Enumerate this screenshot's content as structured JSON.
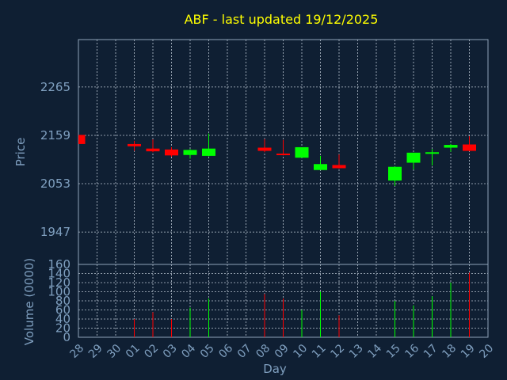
{
  "chart_data": {
    "type": "candlestick",
    "title": "ABF - last updated 19/12/2025",
    "xlabel": "Day",
    "categories": [
      "28",
      "29",
      "30",
      "01",
      "02",
      "03",
      "04",
      "05",
      "06",
      "07",
      "08",
      "09",
      "10",
      "11",
      "12",
      "13",
      "14",
      "15",
      "16",
      "17",
      "18",
      "19",
      "20"
    ],
    "price_panel": {
      "ylabel": "Price",
      "ylim": [
        1876,
        2369
      ],
      "yticks": [
        1947,
        2053,
        2159,
        2265
      ],
      "grid": true,
      "candles": [
        {
          "day": "28",
          "open": 2160,
          "high": 2160,
          "low": 2140,
          "close": 2140
        },
        {
          "day": "01",
          "open": 2140,
          "high": 2147,
          "low": 2125,
          "close": 2135
        },
        {
          "day": "02",
          "open": 2130,
          "high": 2150,
          "low": 2122,
          "close": 2124
        },
        {
          "day": "03",
          "open": 2128,
          "high": 2133,
          "low": 2112,
          "close": 2115
        },
        {
          "day": "04",
          "open": 2116,
          "high": 2129,
          "low": 2108,
          "close": 2127
        },
        {
          "day": "05",
          "open": 2114,
          "high": 2163,
          "low": 2113,
          "close": 2130
        },
        {
          "day": "08",
          "open": 2132,
          "high": 2151,
          "low": 2122,
          "close": 2125
        },
        {
          "day": "09",
          "open": 2119,
          "high": 2149,
          "low": 2115,
          "close": 2117
        },
        {
          "day": "10",
          "open": 2110,
          "high": 2132,
          "low": 2110,
          "close": 2133
        },
        {
          "day": "11",
          "open": 2083,
          "high": 2114,
          "low": 2083,
          "close": 2096
        },
        {
          "day": "12",
          "open": 2094,
          "high": 2117,
          "low": 2086,
          "close": 2087
        },
        {
          "day": "15",
          "open": 2060,
          "high": 2091,
          "low": 2048,
          "close": 2090
        },
        {
          "day": "16",
          "open": 2099,
          "high": 2121,
          "low": 2084,
          "close": 2121
        },
        {
          "day": "17",
          "open": 2120,
          "high": 2129,
          "low": 2093,
          "close": 2122
        },
        {
          "day": "18",
          "open": 2132,
          "high": 2140,
          "low": 2123,
          "close": 2138
        },
        {
          "day": "19",
          "open": 2139,
          "high": 2157,
          "low": 2124,
          "close": 2125
        }
      ]
    },
    "volume_panel": {
      "ylabel": "Volume (0000)",
      "ylim": [
        0,
        160
      ],
      "yticks": [
        0,
        20,
        40,
        60,
        80,
        100,
        120,
        140,
        160
      ],
      "grid": true,
      "bars": [
        {
          "day": "01",
          "value": 40,
          "color": "red"
        },
        {
          "day": "02",
          "value": 55,
          "color": "red"
        },
        {
          "day": "03",
          "value": 40,
          "color": "red"
        },
        {
          "day": "04",
          "value": 65,
          "color": "green"
        },
        {
          "day": "05",
          "value": 85,
          "color": "green"
        },
        {
          "day": "08",
          "value": 95,
          "color": "red"
        },
        {
          "day": "09",
          "value": 85,
          "color": "red"
        },
        {
          "day": "10",
          "value": 60,
          "color": "green"
        },
        {
          "day": "11",
          "value": 100,
          "color": "green"
        },
        {
          "day": "12",
          "value": 48,
          "color": "red"
        },
        {
          "day": "15",
          "value": 80,
          "color": "green"
        },
        {
          "day": "16",
          "value": 70,
          "color": "green"
        },
        {
          "day": "17",
          "value": 90,
          "color": "green"
        },
        {
          "day": "18",
          "value": 120,
          "color": "green"
        },
        {
          "day": "19",
          "value": 142,
          "color": "red"
        }
      ]
    },
    "colors": {
      "background": "#0f1f33",
      "title": "#ffff00",
      "axis_text": "#7f9fbf",
      "up": "#00ff00",
      "down": "#ff0000",
      "grid": "#b8c4d0"
    }
  }
}
